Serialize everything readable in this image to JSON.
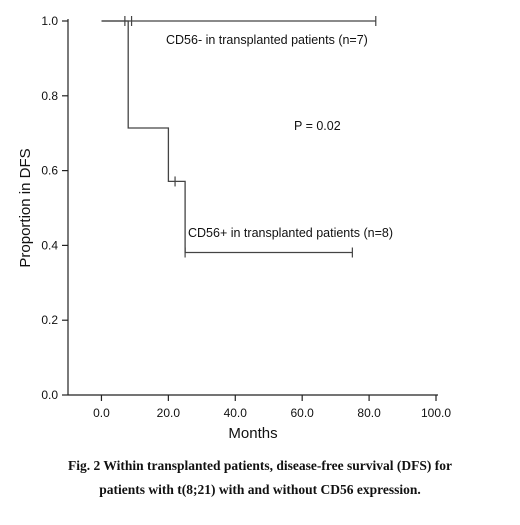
{
  "chart_data": {
    "type": "line",
    "xlabel": "Months",
    "ylabel": "Proportion in DFS",
    "xlim": [
      -10,
      100
    ],
    "ylim": [
      0,
      1
    ],
    "x_ticks": [
      0,
      20,
      40,
      60,
      80,
      100
    ],
    "x_tick_labels": [
      "0.0",
      "20.0",
      "40.0",
      "60.0",
      "80.0",
      "100.0"
    ],
    "y_ticks": [
      0,
      0.2,
      0.4,
      0.6,
      0.8,
      1.0
    ],
    "y_tick_labels": [
      "0.0",
      "0.2",
      "0.4",
      "0.6",
      "0.8",
      "1.0"
    ],
    "series": [
      {
        "name": "CD56- in transplanted patients (n=7)",
        "steps": [
          [
            0,
            1.0
          ],
          [
            82,
            1.0
          ]
        ],
        "censored": [
          [
            7,
            1.0
          ],
          [
            9,
            1.0
          ],
          [
            82,
            1.0
          ]
        ]
      },
      {
        "name": "CD56+ in transplanted patients (n=8)",
        "steps": [
          [
            0,
            1.0
          ],
          [
            8,
            1.0
          ],
          [
            8,
            0.714
          ],
          [
            20,
            0.714
          ],
          [
            20,
            0.571
          ],
          [
            25,
            0.571
          ],
          [
            25,
            0.381
          ],
          [
            75,
            0.381
          ]
        ],
        "censored": [
          [
            22,
            0.571
          ],
          [
            25,
            0.381
          ],
          [
            75,
            0.381
          ]
        ]
      }
    ],
    "annotations": [
      "P = 0.02"
    ],
    "line_color": "#444444"
  },
  "caption": {
    "line1": "Fig. 2 Within transplanted patients, disease-free survival (DFS) for",
    "line2": "patients with t(8;21) with and without CD56 expression."
  }
}
